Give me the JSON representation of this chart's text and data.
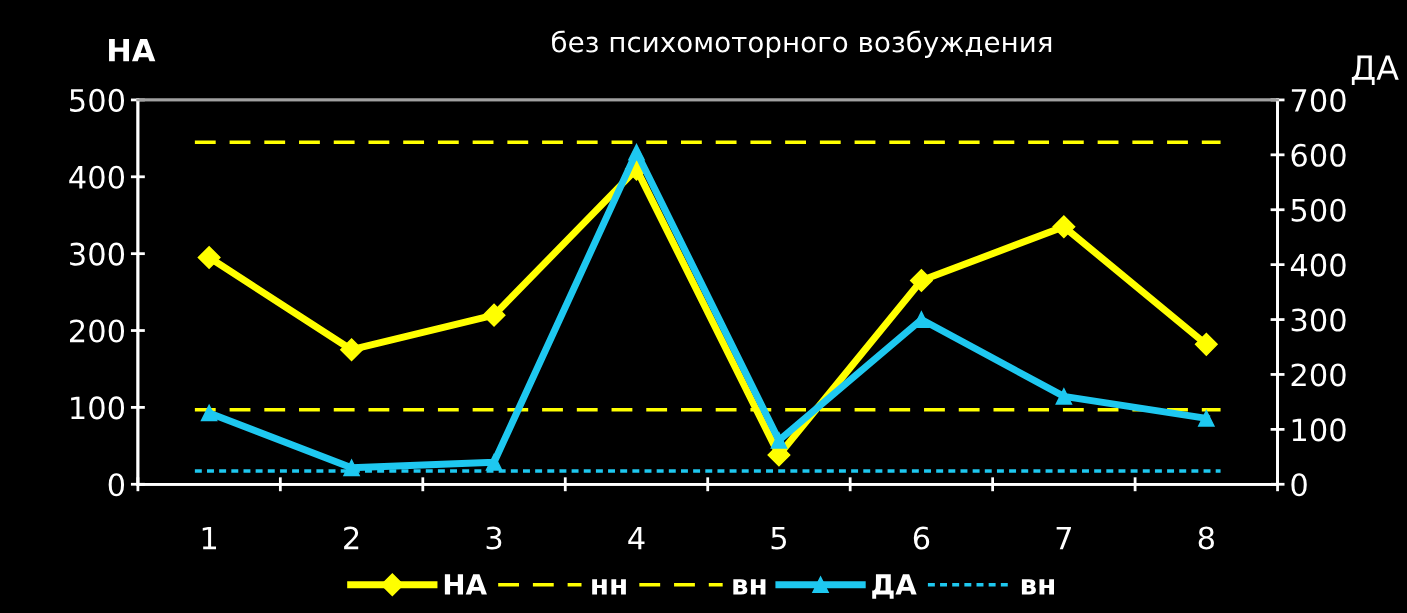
{
  "chart_data": {
    "type": "line",
    "title": "без психомоторного возбуждения",
    "ylabel": "НА",
    "y2label": "ДА",
    "categories": [
      "1",
      "2",
      "3",
      "4",
      "5",
      "6",
      "7",
      "8"
    ],
    "series": [
      {
        "name": "НА",
        "color": "#ffff00",
        "marker": "diamond",
        "values": [
          295,
          175,
          220,
          410,
          38,
          265,
          335,
          182
        ]
      },
      {
        "name": "ДА",
        "color": "#1ec8f0",
        "marker": "triangle",
        "axis": "y2",
        "values": [
          130,
          30,
          40,
          605,
          80,
          300,
          160,
          120
        ]
      }
    ],
    "ref_lines": [
      {
        "axis": "y",
        "value": 97,
        "label": "нн",
        "color": "#ffff00",
        "line_style": "dashed"
      },
      {
        "axis": "y",
        "value": 445,
        "label": "вн",
        "color": "#ffff00",
        "line_style": "dashed"
      },
      {
        "axis": "y2",
        "value": 24,
        "label": "вн",
        "color": "#1ec8f0",
        "line_style": "dotted"
      }
    ],
    "ylim": [
      0,
      500
    ],
    "yticks": [
      0,
      100,
      200,
      300,
      400,
      500
    ],
    "y2lim": [
      0,
      700
    ],
    "y2ticks": [
      0,
      100,
      200,
      300,
      400,
      500,
      600,
      700
    ],
    "grid": false,
    "legend": "bottom"
  }
}
